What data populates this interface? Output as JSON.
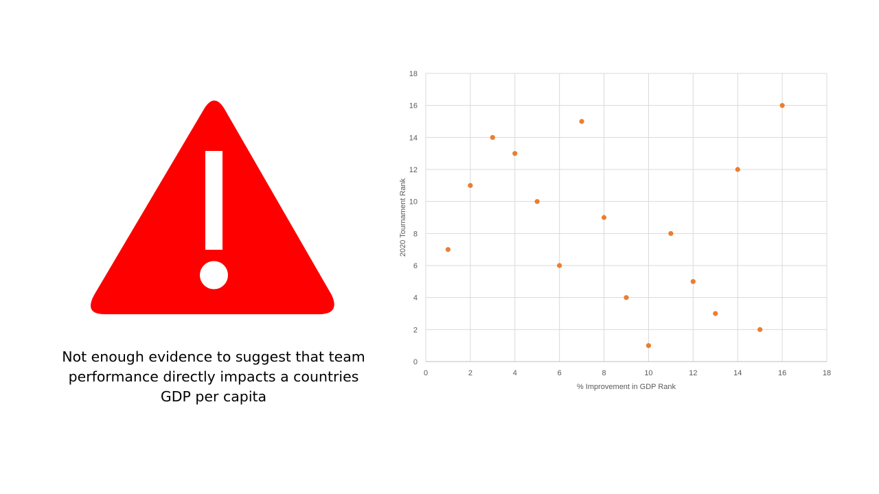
{
  "slide": {
    "caption": "Not enough evidence to suggest  that team performance directly impacts a countries GDP per capita",
    "icon": "warning-triangle-icon",
    "icon_color": "#ff0000"
  },
  "chart_data": {
    "type": "scatter",
    "title": "",
    "xlabel": "% Improvement  in GDP Rank",
    "ylabel": "2020 Tournament Rank",
    "xlim": [
      0,
      18
    ],
    "ylim": [
      0,
      18
    ],
    "xticks": [
      0,
      2,
      4,
      6,
      8,
      10,
      12,
      14,
      16,
      18
    ],
    "yticks": [
      0,
      2,
      4,
      6,
      8,
      10,
      12,
      14,
      16,
      18
    ],
    "grid": true,
    "legend": "none",
    "marker_color": "#ed7d31",
    "series": [
      {
        "x": [
          1,
          2,
          3,
          4,
          5,
          6,
          7,
          8,
          9,
          10,
          11,
          12,
          13,
          14,
          15,
          16
        ],
        "y": [
          7,
          11,
          14,
          13,
          10,
          6,
          15,
          9,
          4,
          1,
          8,
          5,
          3,
          12,
          2,
          16
        ]
      }
    ]
  }
}
